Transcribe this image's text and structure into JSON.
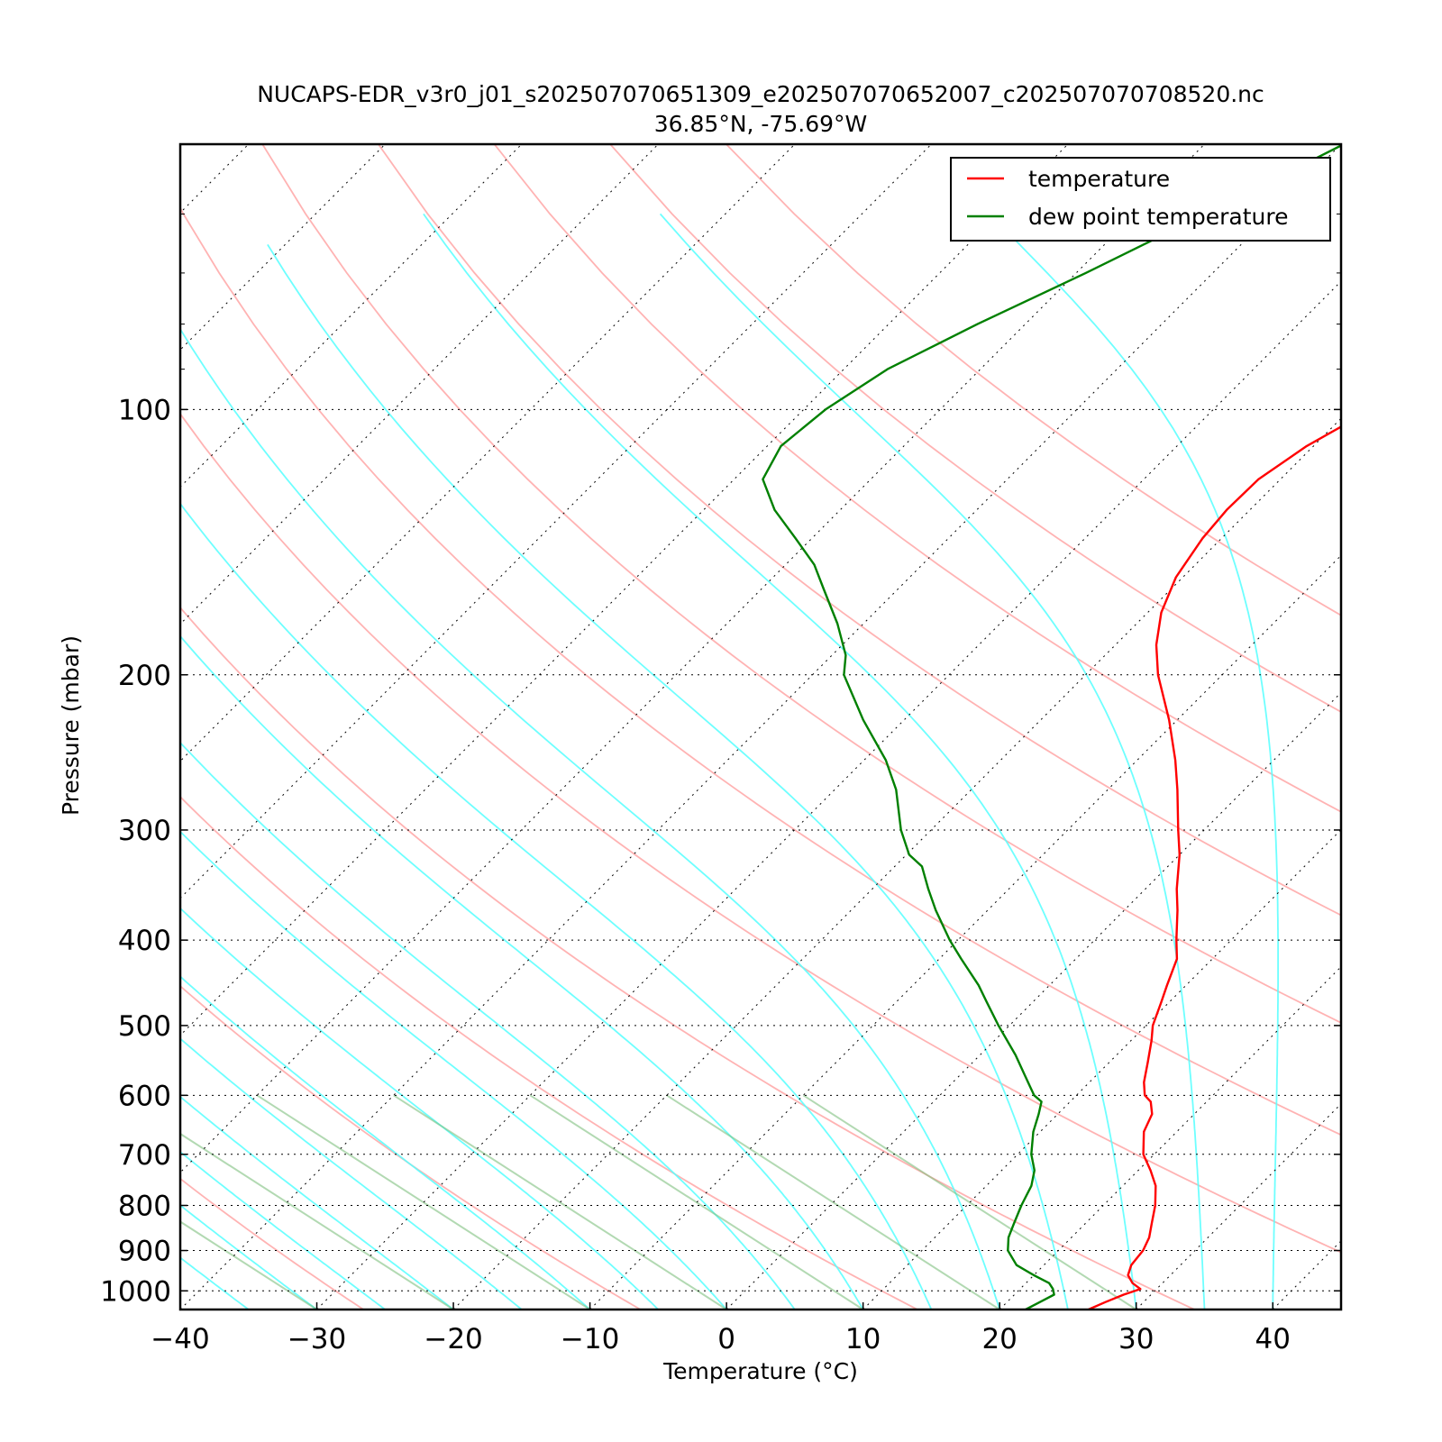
{
  "chart_data": {
    "type": "line",
    "title": "NUCAPS-EDR_v3r0_j01_s202507070651309_e202507070652007_c202507070708520.nc",
    "subtitle": "36.85°N, -75.69°W",
    "xlabel": "Temperature (°C)",
    "ylabel": "Pressure (mbar)",
    "xlim": [
      -40,
      45
    ],
    "ylim": [
      1050,
      50
    ],
    "y_scale": "log",
    "skew": true,
    "x_ticks": [
      "−40",
      "−30",
      "−20",
      "−10",
      "0",
      "10",
      "20",
      "30",
      "40"
    ],
    "y_ticks": [
      "100",
      "200",
      "300",
      "400",
      "500",
      "600",
      "700",
      "800",
      "900",
      "1000"
    ],
    "grid": "dotted horizontal at labeled pressures",
    "legend_position": "top-right",
    "series": [
      {
        "name": "temperature",
        "color": "#ff0000",
        "points": [
          [
            1050,
            26.5
          ],
          [
            1030,
            27.2
          ],
          [
            1010,
            28.0
          ],
          [
            995,
            28.8
          ],
          [
            980,
            27.8
          ],
          [
            960,
            26.9
          ],
          [
            935,
            26.4
          ],
          [
            900,
            26.2
          ],
          [
            870,
            25.7
          ],
          [
            840,
            24.9
          ],
          [
            800,
            23.8
          ],
          [
            760,
            22.4
          ],
          [
            730,
            20.9
          ],
          [
            700,
            19.2
          ],
          [
            660,
            17.6
          ],
          [
            630,
            16.9
          ],
          [
            610,
            15.9
          ],
          [
            600,
            15.0
          ],
          [
            580,
            14.0
          ],
          [
            550,
            12.8
          ],
          [
            520,
            11.5
          ],
          [
            500,
            10.5
          ],
          [
            470,
            9.4
          ],
          [
            450,
            8.6
          ],
          [
            420,
            7.4
          ],
          [
            400,
            6.0
          ],
          [
            370,
            3.9
          ],
          [
            350,
            2.3
          ],
          [
            320,
            0.0
          ],
          [
            300,
            -1.9
          ],
          [
            270,
            -4.9
          ],
          [
            250,
            -7.2
          ],
          [
            225,
            -10.6
          ],
          [
            200,
            -14.7
          ],
          [
            185,
            -17.0
          ],
          [
            170,
            -19.0
          ],
          [
            155,
            -20.5
          ],
          [
            140,
            -21.4
          ],
          [
            130,
            -21.7
          ],
          [
            120,
            -21.6
          ],
          [
            110,
            -20.5
          ],
          [
            100,
            -18.4
          ],
          [
            90,
            -14.2
          ],
          [
            80,
            -8.2
          ],
          [
            70,
            -1.2
          ],
          [
            60,
            7.0
          ],
          [
            50,
            17.0
          ]
        ]
      },
      {
        "name": "dew point temperature",
        "color": "#008000",
        "points": [
          [
            1050,
            21.9
          ],
          [
            1030,
            22.4
          ],
          [
            1010,
            22.9
          ],
          [
            995,
            22.4
          ],
          [
            980,
            21.7
          ],
          [
            960,
            20.0
          ],
          [
            935,
            18.0
          ],
          [
            900,
            16.3
          ],
          [
            870,
            15.4
          ],
          [
            840,
            14.8
          ],
          [
            800,
            14.0
          ],
          [
            760,
            13.3
          ],
          [
            730,
            12.4
          ],
          [
            700,
            11.0
          ],
          [
            660,
            9.5
          ],
          [
            630,
            8.6
          ],
          [
            610,
            7.9
          ],
          [
            600,
            6.9
          ],
          [
            570,
            4.8
          ],
          [
            540,
            2.6
          ],
          [
            500,
            -0.8
          ],
          [
            470,
            -3.4
          ],
          [
            450,
            -5.2
          ],
          [
            420,
            -8.4
          ],
          [
            400,
            -10.6
          ],
          [
            370,
            -13.8
          ],
          [
            350,
            -15.9
          ],
          [
            330,
            -18.0
          ],
          [
            320,
            -19.8
          ],
          [
            300,
            -22.2
          ],
          [
            270,
            -25.5
          ],
          [
            250,
            -28.4
          ],
          [
            225,
            -33.0
          ],
          [
            200,
            -37.7
          ],
          [
            190,
            -39.0
          ],
          [
            175,
            -41.9
          ],
          [
            160,
            -45.4
          ],
          [
            150,
            -47.9
          ],
          [
            140,
            -51.2
          ],
          [
            130,
            -54.8
          ],
          [
            120,
            -57.9
          ],
          [
            110,
            -59.0
          ],
          [
            100,
            -58.4
          ],
          [
            90,
            -56.8
          ],
          [
            80,
            -53.5
          ],
          [
            70,
            -49.3
          ],
          [
            60,
            -44.8
          ],
          [
            50,
            -39.8
          ]
        ]
      }
    ]
  }
}
